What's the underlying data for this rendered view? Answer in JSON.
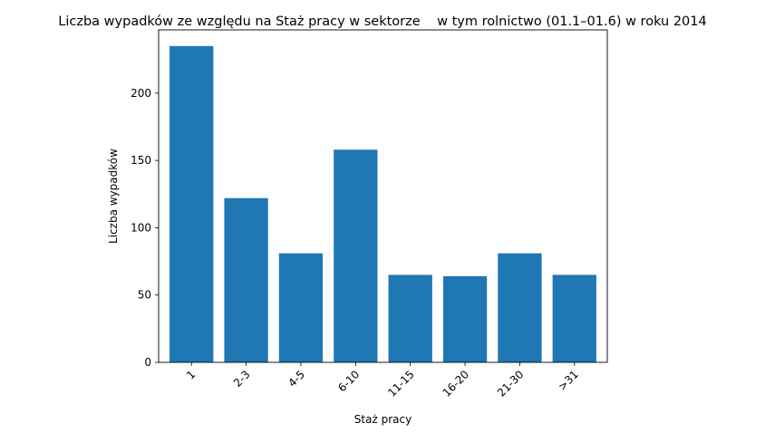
{
  "chart_data": {
    "type": "bar",
    "title": "Liczba wypadków ze względu na Staż pracy w sektorze    w tym rolnictwo (01.1–01.6) w roku 2014",
    "xlabel": "Staż pracy",
    "ylabel": "Liczba wypadków",
    "categories": [
      "1",
      "2-3",
      "4-5",
      "6-10",
      "11-15",
      "16-20",
      "21-30",
      ">31"
    ],
    "values": [
      235,
      122,
      81,
      158,
      65,
      64,
      81,
      65
    ],
    "ylim": [
      0,
      247
    ],
    "yticks": [
      0,
      50,
      100,
      150,
      200
    ],
    "bar_color": "#1f77b4",
    "grid": false,
    "xtick_rotation": 45
  }
}
